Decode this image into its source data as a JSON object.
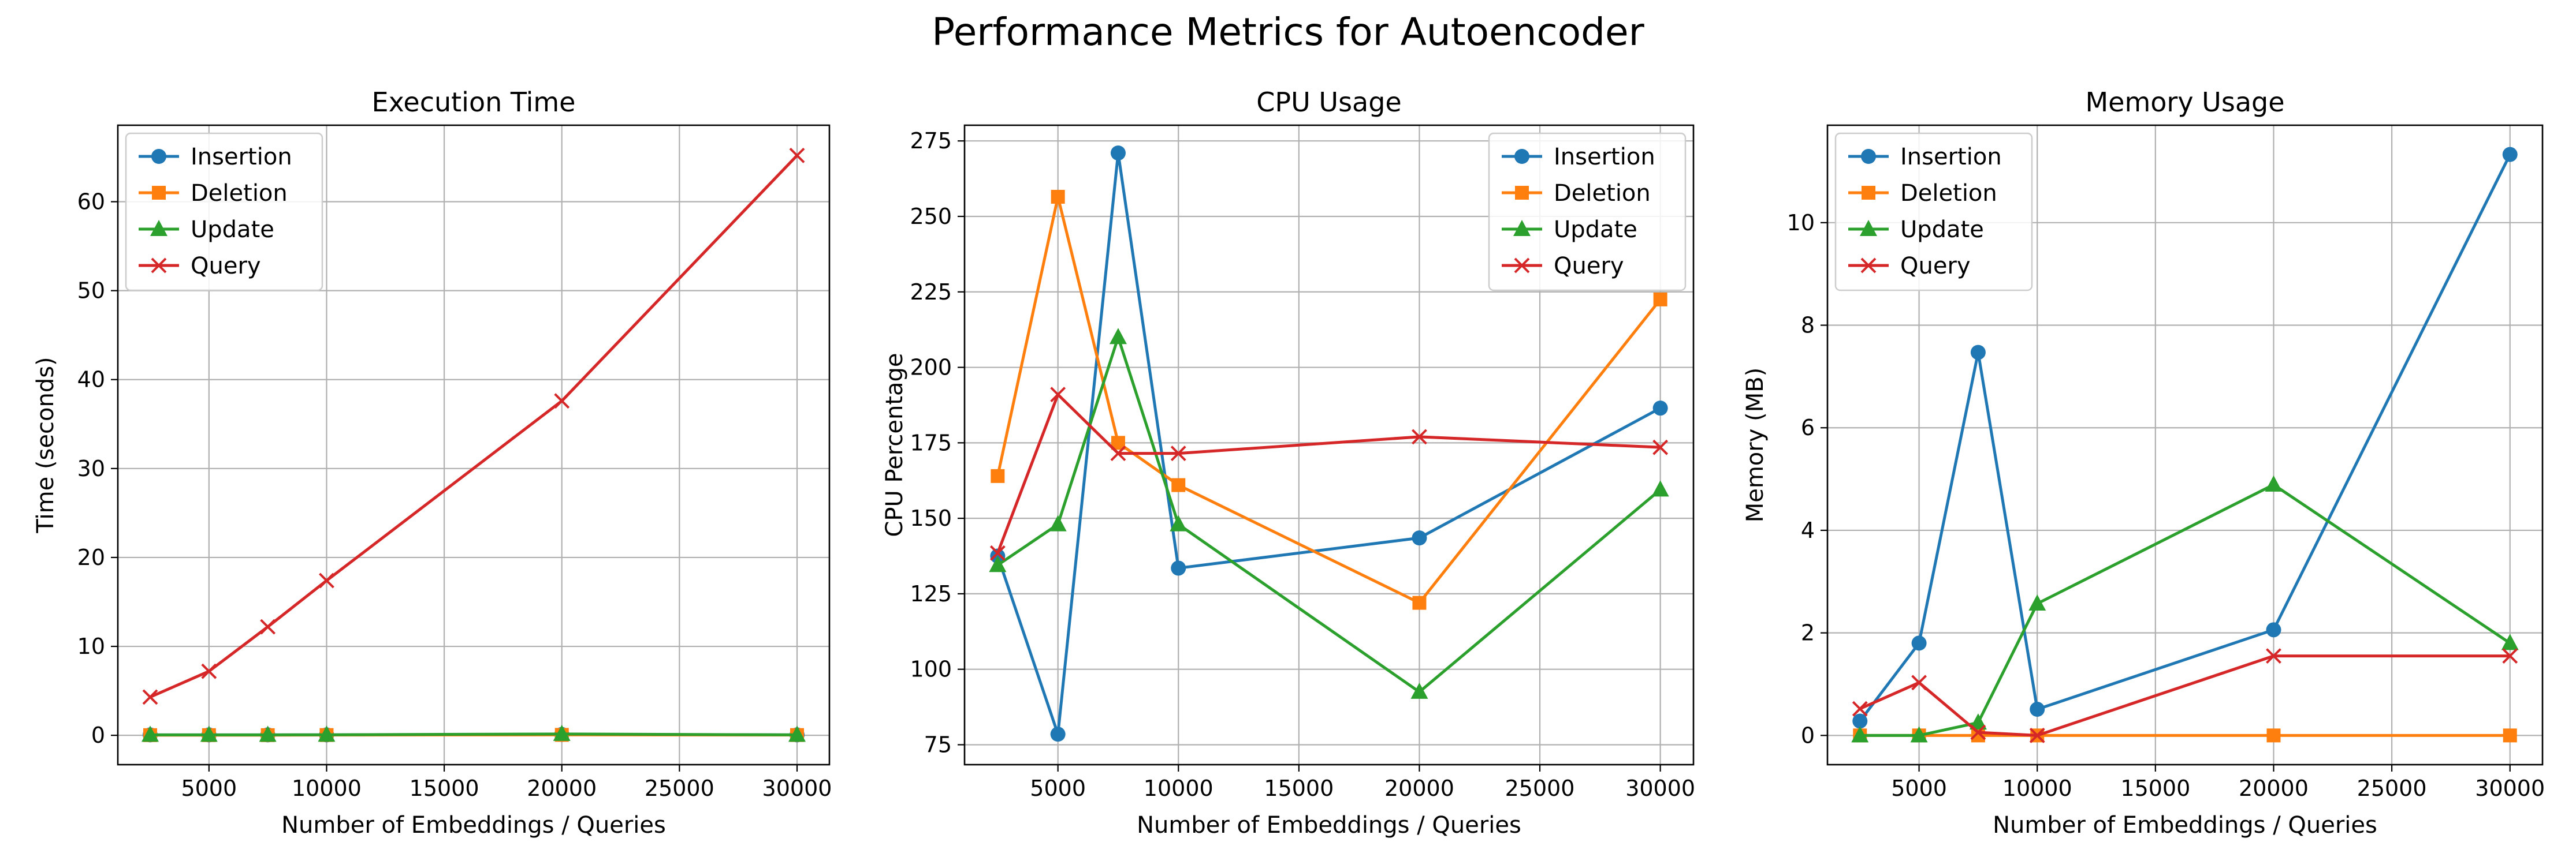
{
  "figure_title": "Performance Metrics for Autoencoder",
  "chart_data": [
    {
      "type": "line",
      "title": "Execution Time",
      "xlabel": "Number of Embeddings / Queries",
      "ylabel": "Time (seconds)",
      "x": [
        2500,
        5000,
        7500,
        10000,
        20000,
        30000
      ],
      "xlim": [
        1125,
        31375
      ],
      "ylim": [
        -3.3,
        68.6
      ],
      "xticks": [
        5000,
        10000,
        15000,
        20000,
        25000,
        30000
      ],
      "yticks": [
        0,
        10,
        20,
        30,
        40,
        50,
        60
      ],
      "grid": true,
      "legend": "upper-left",
      "series": [
        {
          "name": "Insertion",
          "color": "#1f77b4",
          "marker": "circle",
          "values": [
            0.05,
            0.05,
            0.05,
            0.05,
            0.1,
            0.05
          ]
        },
        {
          "name": "Deletion",
          "color": "#ff7f0e",
          "marker": "square",
          "values": [
            0.02,
            0.02,
            0.02,
            0.03,
            0.05,
            0.03
          ]
        },
        {
          "name": "Update",
          "color": "#2ca02c",
          "marker": "triangle",
          "values": [
            0.05,
            0.05,
            0.05,
            0.06,
            0.15,
            0.05
          ]
        },
        {
          "name": "Query",
          "color": "#d62728",
          "marker": "x",
          "values": [
            4.3,
            7.2,
            12.2,
            17.4,
            37.6,
            65.2
          ]
        }
      ]
    },
    {
      "type": "line",
      "title": "CPU Usage",
      "xlabel": "Number of Embeddings / Queries",
      "ylabel": "CPU Percentage",
      "x": [
        2500,
        5000,
        7500,
        10000,
        20000,
        30000
      ],
      "xlim": [
        1125,
        31375
      ],
      "ylim": [
        68.4,
        280.2
      ],
      "xticks": [
        5000,
        10000,
        15000,
        20000,
        25000,
        30000
      ],
      "yticks": [
        75,
        100,
        125,
        150,
        175,
        200,
        225,
        250,
        275
      ],
      "grid": true,
      "legend": "upper-right",
      "series": [
        {
          "name": "Insertion",
          "color": "#1f77b4",
          "marker": "circle",
          "values": [
            137.5,
            78.5,
            271.0,
            133.5,
            143.5,
            186.5
          ]
        },
        {
          "name": "Deletion",
          "color": "#ff7f0e",
          "marker": "square",
          "values": [
            164.0,
            256.5,
            175.0,
            161.0,
            122.0,
            222.5
          ]
        },
        {
          "name": "Update",
          "color": "#2ca02c",
          "marker": "triangle",
          "values": [
            134.5,
            148.0,
            210.0,
            148.0,
            92.5,
            159.5
          ]
        },
        {
          "name": "Query",
          "color": "#d62728",
          "marker": "x",
          "values": [
            138.5,
            191.0,
            171.5,
            171.5,
            177.0,
            173.5
          ]
        }
      ]
    },
    {
      "type": "line",
      "title": "Memory Usage",
      "xlabel": "Number of Embeddings / Queries",
      "ylabel": "Memory (MB)",
      "x": [
        2500,
        5000,
        7500,
        10000,
        20000,
        30000
      ],
      "xlim": [
        1125,
        31375
      ],
      "ylim": [
        -0.57,
        11.9
      ],
      "xticks": [
        5000,
        10000,
        15000,
        20000,
        25000,
        30000
      ],
      "yticks": [
        0,
        2,
        4,
        6,
        8,
        10
      ],
      "grid": true,
      "legend": "upper-left",
      "series": [
        {
          "name": "Insertion",
          "color": "#1f77b4",
          "marker": "circle",
          "values": [
            0.28,
            1.8,
            7.47,
            0.51,
            2.06,
            11.33
          ]
        },
        {
          "name": "Deletion",
          "color": "#ff7f0e",
          "marker": "square",
          "values": [
            0.0,
            0.0,
            0.0,
            0.0,
            0.0,
            0.0
          ]
        },
        {
          "name": "Update",
          "color": "#2ca02c",
          "marker": "triangle",
          "values": [
            0.0,
            0.0,
            0.25,
            2.57,
            4.89,
            1.8
          ]
        },
        {
          "name": "Query",
          "color": "#d62728",
          "marker": "x",
          "values": [
            0.52,
            1.03,
            0.06,
            0.0,
            1.55,
            1.55
          ]
        }
      ]
    }
  ]
}
